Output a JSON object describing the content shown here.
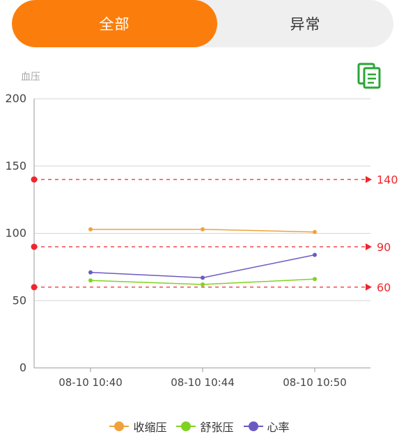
{
  "tabs": [
    {
      "label": "全部",
      "active": true
    },
    {
      "label": "异常",
      "active": false
    }
  ],
  "colors": {
    "accent": "#fb7e0d",
    "icon": "#2aa634",
    "threshold": "#f0262d",
    "systolic": "#f0a23a",
    "diastolic": "#7ed321",
    "heart_rate": "#6b5bc1",
    "grid": "#d6d6d6",
    "axis": "#999999"
  },
  "chart_data": {
    "type": "line",
    "title": "血压",
    "x": [
      "08-10 10:40",
      "08-10 10:44",
      "08-10 10:50"
    ],
    "ylim": [
      0,
      200
    ],
    "yticks": [
      "0",
      "50",
      "100",
      "150",
      "200"
    ],
    "series": [
      {
        "name": "收缩压",
        "values": [
          103,
          103,
          101
        ]
      },
      {
        "name": "舒张压",
        "values": [
          65,
          62,
          66
        ]
      },
      {
        "name": "心率",
        "values": [
          71,
          67,
          84
        ]
      }
    ],
    "thresholds": [
      {
        "value": 140,
        "label": "140"
      },
      {
        "value": 90,
        "label": "90"
      },
      {
        "value": 60,
        "label": "60"
      }
    ],
    "grid": true,
    "legend": "bottom-center"
  },
  "icons": {
    "copy": "document-copy-icon"
  }
}
